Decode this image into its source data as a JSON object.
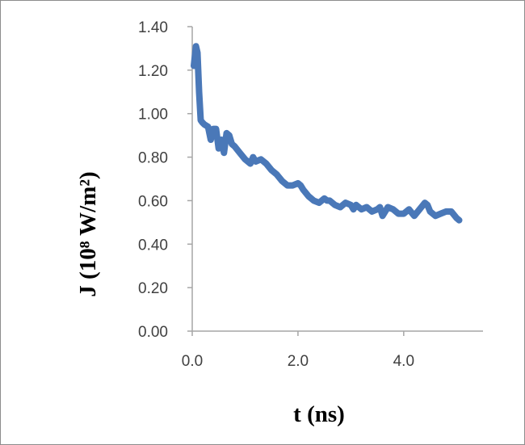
{
  "chart_data": {
    "type": "line",
    "title": "",
    "xlabel": "t (ns)",
    "ylabel": "J (10⁸ W/m²)",
    "xlim": [
      0.0,
      5.5
    ],
    "ylim": [
      0.0,
      1.4
    ],
    "x_ticks": [
      "0.0",
      "2.0",
      "4.0"
    ],
    "y_ticks": [
      "0.00",
      "0.20",
      "0.40",
      "0.60",
      "0.80",
      "1.00",
      "1.20",
      "1.40"
    ],
    "grid": false,
    "legend": "none",
    "series": [
      {
        "color": "#4a78b8",
        "x": [
          0.03,
          0.07,
          0.1,
          0.13,
          0.16,
          0.19,
          0.23,
          0.3,
          0.35,
          0.4,
          0.45,
          0.5,
          0.55,
          0.6,
          0.65,
          0.7,
          0.75,
          0.8,
          0.9,
          1.0,
          1.1,
          1.15,
          1.2,
          1.3,
          1.4,
          1.5,
          1.6,
          1.7,
          1.8,
          1.9,
          2.0,
          2.05,
          2.1,
          2.2,
          2.3,
          2.4,
          2.5,
          2.55,
          2.6,
          2.7,
          2.8,
          2.9,
          3.0,
          3.05,
          3.1,
          3.2,
          3.3,
          3.4,
          3.5,
          3.55,
          3.6,
          3.7,
          3.8,
          3.9,
          4.0,
          4.1,
          4.2,
          4.3,
          4.4,
          4.45,
          4.5,
          4.6,
          4.7,
          4.8,
          4.9,
          5.0,
          5.05
        ],
        "values": [
          1.22,
          1.31,
          1.28,
          1.1,
          0.97,
          0.96,
          0.95,
          0.94,
          0.88,
          0.93,
          0.93,
          0.84,
          0.88,
          0.82,
          0.91,
          0.9,
          0.86,
          0.85,
          0.82,
          0.79,
          0.77,
          0.8,
          0.78,
          0.79,
          0.77,
          0.74,
          0.72,
          0.69,
          0.67,
          0.67,
          0.68,
          0.67,
          0.65,
          0.62,
          0.6,
          0.59,
          0.61,
          0.6,
          0.6,
          0.58,
          0.57,
          0.59,
          0.58,
          0.56,
          0.58,
          0.56,
          0.57,
          0.55,
          0.56,
          0.57,
          0.53,
          0.57,
          0.56,
          0.54,
          0.54,
          0.56,
          0.53,
          0.56,
          0.59,
          0.58,
          0.55,
          0.53,
          0.54,
          0.55,
          0.55,
          0.52,
          0.51
        ]
      }
    ]
  }
}
